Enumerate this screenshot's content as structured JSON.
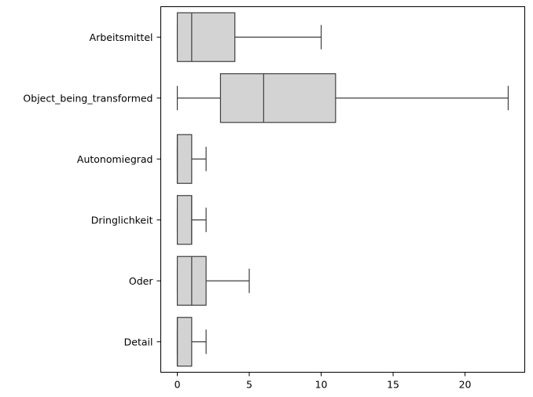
{
  "chart_data": {
    "type": "boxplot",
    "orientation": "horizontal",
    "title": "",
    "xlabel": "",
    "ylabel": "",
    "xlim": [
      -1.15,
      24.15
    ],
    "xticks": [
      0,
      5,
      10,
      15,
      20
    ],
    "grid": false,
    "box_color": "#d3d3d3",
    "line_color": "#3f3f3f",
    "categories": [
      "Arbeitsmittel",
      "Object_being_transformed",
      "Autonomiegrad",
      "Dringlichkeit",
      "Oder",
      "Detail"
    ],
    "boxes": [
      {
        "category": "Arbeitsmittel",
        "whisker_low": 0,
        "q1": 0,
        "median": 1,
        "q3": 4,
        "whisker_high": 10
      },
      {
        "category": "Object_being_transformed",
        "whisker_low": 0,
        "q1": 3,
        "median": 6,
        "q3": 11,
        "whisker_high": 23
      },
      {
        "category": "Autonomiegrad",
        "whisker_low": 0,
        "q1": 0,
        "median": 0,
        "q3": 1,
        "whisker_high": 2
      },
      {
        "category": "Dringlichkeit",
        "whisker_low": 0,
        "q1": 0,
        "median": 1,
        "q3": 1,
        "whisker_high": 2
      },
      {
        "category": "Oder",
        "whisker_low": 0,
        "q1": 0,
        "median": 1,
        "q3": 2,
        "whisker_high": 5
      },
      {
        "category": "Detail",
        "whisker_low": 0,
        "q1": 0,
        "median": 0,
        "q3": 1,
        "whisker_high": 2
      }
    ]
  }
}
